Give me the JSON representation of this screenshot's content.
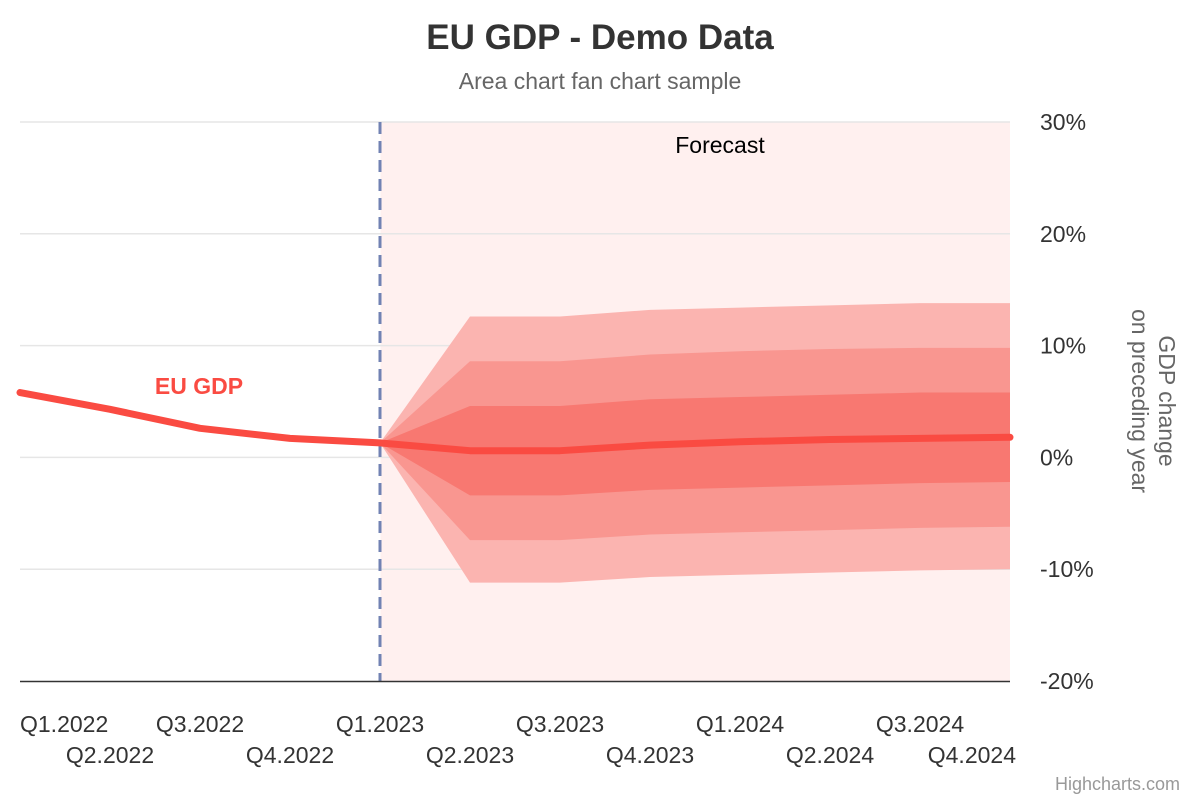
{
  "chart_data": {
    "type": "area",
    "title": "EU GDP - Demo Data",
    "subtitle": "Area chart fan chart sample",
    "ylabel_line1": "GDP change",
    "ylabel_line2": "on preceding year",
    "credits": "Highcharts.com",
    "forecast_label": "Forecast",
    "series_label": "EU GDP",
    "categories": [
      "Q1.2022",
      "Q2.2022",
      "Q3.2022",
      "Q4.2022",
      "Q1.2023",
      "Q2.2023",
      "Q3.2023",
      "Q4.2023",
      "Q1.2024",
      "Q2.2024",
      "Q3.2024",
      "Q4.2024"
    ],
    "x_start": "Q1.2022",
    "x_end": "Q4.2024",
    "ylim": [
      -20,
      30
    ],
    "yticks": [
      -20,
      -10,
      0,
      10,
      20,
      30
    ],
    "ytick_format": "%",
    "forecast_start": "Q1.2023",
    "series": [
      {
        "name": "EU GDP",
        "x": [
          "Q1.2022",
          "Q2.2022",
          "Q3.2022",
          "Q4.2022",
          "Q1.2023",
          "Q2.2023",
          "Q3.2023",
          "Q4.2023",
          "Q1.2024",
          "Q2.2024",
          "Q3.2024",
          "Q4.2024"
        ],
        "values": [
          5.8,
          4.3,
          2.6,
          1.7,
          1.3,
          0.6,
          0.6,
          1.1,
          1.4,
          1.6,
          1.7,
          1.8
        ]
      }
    ],
    "fan_bands": [
      {
        "lower": [
          1.3,
          -11.2,
          -11.2,
          -10.7,
          -10.5,
          -10.3,
          -10.1,
          -10.0
        ],
        "upper": [
          1.3,
          12.6,
          12.6,
          13.2,
          13.4,
          13.6,
          13.8,
          13.8
        ]
      },
      {
        "lower": [
          1.3,
          -7.4,
          -7.4,
          -6.9,
          -6.7,
          -6.5,
          -6.3,
          -6.2
        ],
        "upper": [
          1.3,
          8.6,
          8.6,
          9.2,
          9.5,
          9.7,
          9.8,
          9.8
        ]
      },
      {
        "lower": [
          1.3,
          -3.4,
          -3.4,
          -2.9,
          -2.7,
          -2.5,
          -2.3,
          -2.2
        ],
        "upper": [
          1.3,
          4.6,
          4.6,
          5.2,
          5.4,
          5.6,
          5.8,
          5.8
        ]
      }
    ],
    "fan_x": [
      "Q1.2023",
      "Q2.2023",
      "Q3.2023",
      "Q4.2023",
      "Q1.2024",
      "Q2.2024",
      "Q3.2024",
      "Q4.2024"
    ],
    "grid": true,
    "colors": {
      "line": "#fa4b42",
      "band_outer": "#fbb4b0",
      "band_mid": "#f99690",
      "band_inner": "#f87871",
      "forecast_bg": "#fff0ef",
      "plotline": "#7182b3",
      "grid": "#e6e6e6",
      "axis": "#333333",
      "title": "#333333",
      "subtitle": "#666666",
      "credits": "#999999"
    }
  }
}
